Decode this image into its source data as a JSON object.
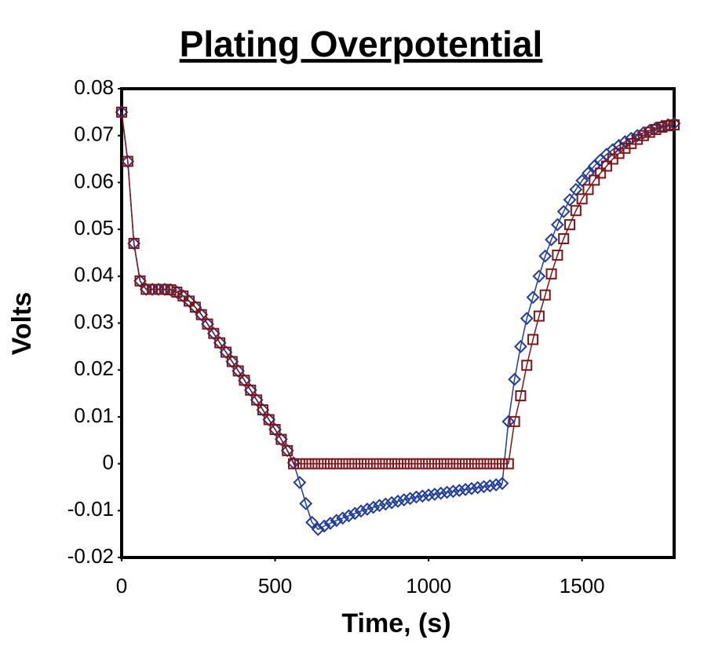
{
  "chart_data": {
    "type": "scatter",
    "title": "Plating Overpotential",
    "x_label": "Time, (s)",
    "y_label": "Volts",
    "x": [
      0,
      20,
      40,
      60,
      80,
      100,
      120,
      140,
      160,
      180,
      200,
      220,
      240,
      260,
      280,
      300,
      320,
      340,
      360,
      380,
      400,
      420,
      440,
      460,
      480,
      500,
      520,
      540,
      560,
      580,
      600,
      620,
      640,
      660,
      680,
      700,
      720,
      740,
      760,
      780,
      800,
      820,
      840,
      860,
      880,
      900,
      920,
      940,
      960,
      980,
      1000,
      1020,
      1040,
      1060,
      1080,
      1100,
      1120,
      1140,
      1160,
      1180,
      1200,
      1220,
      1240,
      1260,
      1280,
      1300,
      1320,
      1340,
      1360,
      1380,
      1400,
      1420,
      1440,
      1460,
      1480,
      1500,
      1520,
      1540,
      1560,
      1580,
      1600,
      1620,
      1640,
      1660,
      1680,
      1700,
      1720,
      1740,
      1760,
      1780,
      1800
    ],
    "series": [
      {
        "color": "#1f3c9c",
        "marker": "diamond",
        "values": [
          0.075,
          0.0645,
          0.047,
          0.039,
          0.0372,
          0.0372,
          0.0372,
          0.0372,
          0.0371,
          0.0366,
          0.0358,
          0.0347,
          0.0334,
          0.0318,
          0.0298,
          0.0278,
          0.0258,
          0.0238,
          0.0218,
          0.0198,
          0.0178,
          0.0157,
          0.0136,
          0.0115,
          0.0094,
          0.0073,
          0.0052,
          0.0028,
          0.0002,
          -0.004,
          -0.0085,
          -0.0125,
          -0.014,
          -0.0133,
          -0.0127,
          -0.0121,
          -0.0116,
          -0.0111,
          -0.0106,
          -0.0101,
          -0.0097,
          -0.0093,
          -0.0089,
          -0.0086,
          -0.0083,
          -0.008,
          -0.0077,
          -0.0074,
          -0.0071,
          -0.0069,
          -0.0067,
          -0.0065,
          -0.0063,
          -0.0061,
          -0.0059,
          -0.0057,
          -0.0055,
          -0.0053,
          -0.0051,
          -0.0049,
          -0.0047,
          -0.0045,
          -0.0042,
          0.009,
          0.018,
          0.025,
          0.031,
          0.0355,
          0.04,
          0.0443,
          0.0478,
          0.051,
          0.0538,
          0.0563,
          0.0585,
          0.0604,
          0.062,
          0.0635,
          0.0648,
          0.066,
          0.067,
          0.0679,
          0.0687,
          0.0694,
          0.07,
          0.0706,
          0.0711,
          0.0716,
          0.072,
          0.0723,
          0.0726
        ]
      },
      {
        "color": "#7f1416",
        "marker": "square",
        "values": [
          0.075,
          0.0645,
          0.047,
          0.039,
          0.0372,
          0.0372,
          0.0372,
          0.0372,
          0.0371,
          0.0366,
          0.0358,
          0.0347,
          0.0334,
          0.0318,
          0.0298,
          0.0278,
          0.0258,
          0.0238,
          0.0218,
          0.0198,
          0.0178,
          0.0157,
          0.0136,
          0.0115,
          0.0094,
          0.0073,
          0.0052,
          0.0028,
          0,
          0,
          0,
          0,
          0,
          0,
          0,
          0,
          0,
          0,
          0,
          0,
          0,
          0,
          0,
          0,
          0,
          0,
          0,
          0,
          0,
          0,
          0,
          0,
          0,
          0,
          0,
          0,
          0,
          0,
          0,
          0,
          0,
          0,
          0,
          0,
          0.009,
          0.0145,
          0.021,
          0.0265,
          0.0315,
          0.036,
          0.0405,
          0.0445,
          0.048,
          0.051,
          0.054,
          0.0565,
          0.0585,
          0.0605,
          0.062,
          0.0635,
          0.065,
          0.0662,
          0.0673,
          0.0683,
          0.0692,
          0.07,
          0.0707,
          0.0713,
          0.0718,
          0.0721,
          0.0723
        ]
      }
    ],
    "xlim": [
      0,
      1800
    ],
    "xticks": [
      0,
      500,
      1000,
      1500
    ],
    "ylim": [
      -0.02,
      0.08
    ],
    "yticks": [
      -0.02,
      -0.01,
      0,
      0.01,
      0.02,
      0.03,
      0.04,
      0.05,
      0.06,
      0.07,
      0.08
    ]
  }
}
